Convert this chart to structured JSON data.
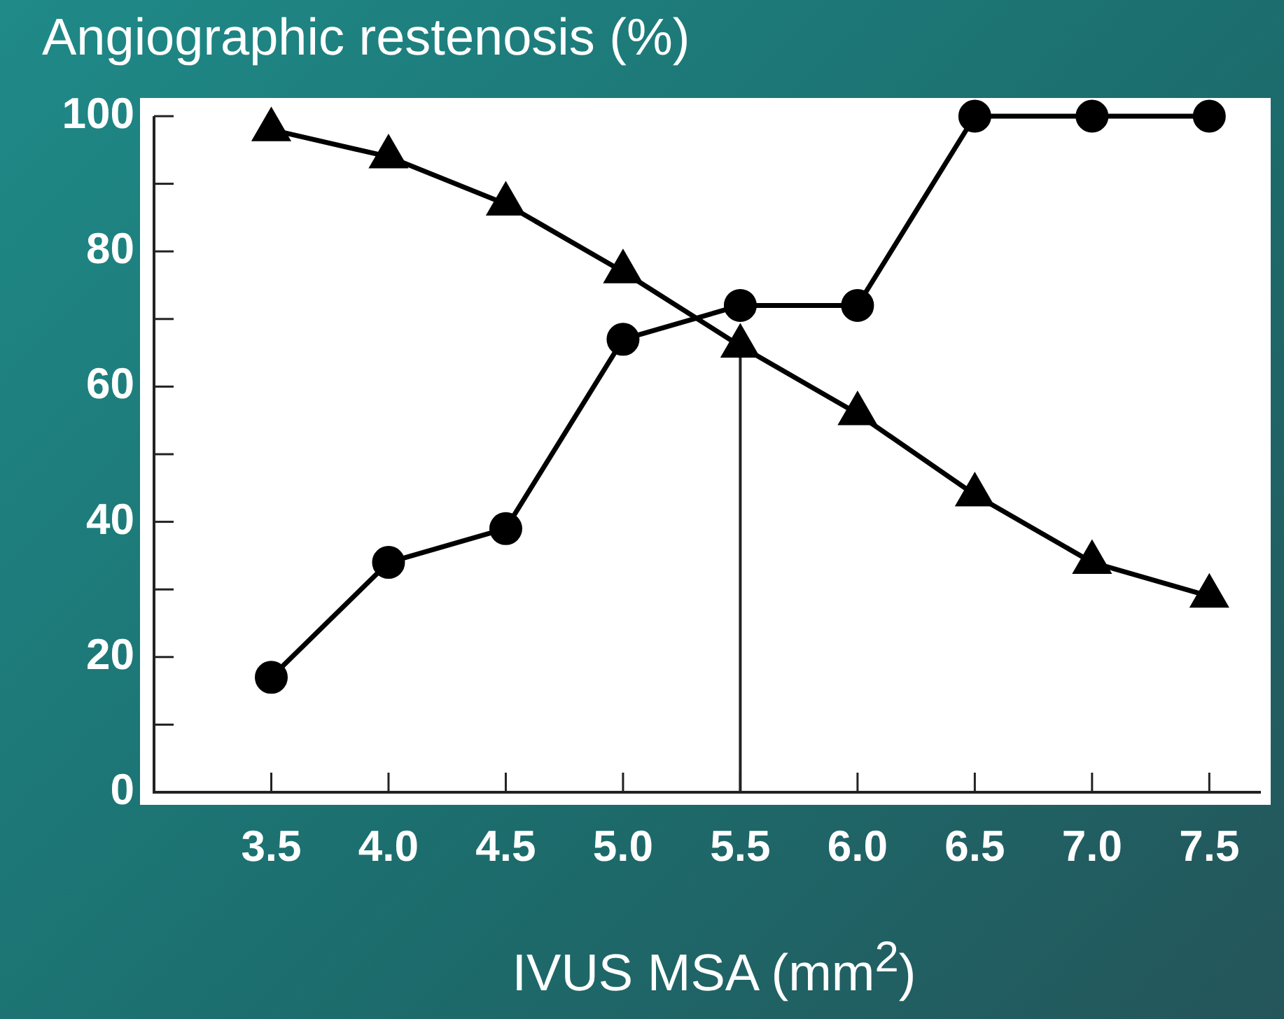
{
  "chart_data": {
    "type": "line",
    "ylabel": "Angiographic restenosis (%)",
    "xlabel": "IVUS MSA (mm$^{2}$)",
    "x": [
      3.5,
      4.0,
      4.5,
      5.0,
      5.5,
      6.0,
      6.5,
      7.0,
      7.5
    ],
    "series": [
      {
        "color": "#000000",
        "marker": "triangle",
        "values": [
          98,
          94,
          87,
          77,
          66,
          56,
          44,
          34,
          29
        ]
      },
      {
        "color": "#000000",
        "marker": "circle",
        "values": [
          17,
          34,
          39,
          67,
          72,
          72,
          100,
          100,
          100
        ]
      }
    ],
    "xlim": [
      3.0,
      7.72
    ],
    "xticks": [
      {
        "value": 3.5,
        "label": "3.5"
      },
      {
        "value": 4.0,
        "label": "4.0"
      },
      {
        "value": 4.5,
        "label": "4.5"
      },
      {
        "value": 5.0,
        "label": "5.0"
      },
      {
        "value": 5.5,
        "label": "5.5"
      },
      {
        "value": 6.0,
        "label": "6.0"
      },
      {
        "value": 6.5,
        "label": "6.5"
      },
      {
        "value": 7.0,
        "label": "7.0"
      },
      {
        "value": 7.5,
        "label": "7.5"
      }
    ],
    "ylim": [
      0,
      100
    ],
    "yticks": [
      0,
      {
        "value": 10,
        "label": null
      },
      20,
      {
        "value": 30,
        "label": null
      },
      40,
      {
        "value": 50,
        "label": null
      },
      60,
      {
        "value": 70,
        "label": null
      },
      80,
      {
        "value": 90,
        "label": null
      },
      100
    ],
    "ref_lines": [
      {
        "axis": "x",
        "value": 5.5,
        "color": "#222222"
      }
    ]
  }
}
